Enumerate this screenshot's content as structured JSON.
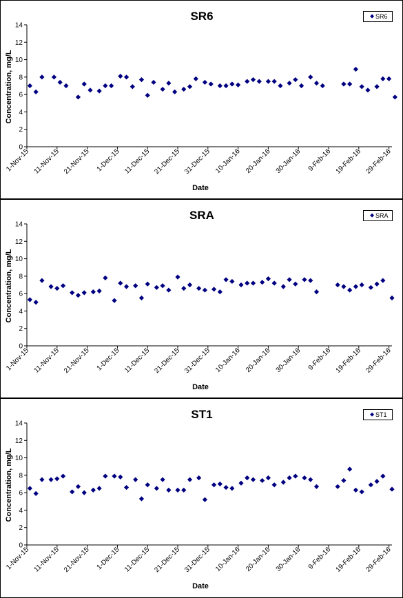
{
  "chart_data": [
    {
      "type": "scatter",
      "title": "SR6",
      "xlabel": "Date",
      "ylabel": "Concentration, mg/L",
      "ylim": [
        0,
        14
      ],
      "yticks": [
        "0",
        "2",
        "4",
        "6",
        "8",
        "10",
        "12",
        "14"
      ],
      "xlim": [
        "2015-11-01",
        "2016-03-01"
      ],
      "xticks": [
        "1-Nov-15",
        "11-Nov-15",
        "21-Nov-15",
        "1-Dec-15",
        "11-Dec-15",
        "21-Dec-15",
        "31-Dec-15",
        "10-Jan-16",
        "20-Jan-16",
        "30-Jan-16",
        "9-Feb-16",
        "19-Feb-16",
        "29-Feb-16"
      ],
      "legend": "top-right",
      "color": "#000080",
      "series": [
        {
          "name": "SR6",
          "points": [
            {
              "x": "2015-11-02",
              "y": 7.0
            },
            {
              "x": "2015-11-04",
              "y": 6.3
            },
            {
              "x": "2015-11-06",
              "y": 8.0
            },
            {
              "x": "2015-11-10",
              "y": 8.0
            },
            {
              "x": "2015-11-12",
              "y": 7.4
            },
            {
              "x": "2015-11-14",
              "y": 7.0
            },
            {
              "x": "2015-11-18",
              "y": 5.7
            },
            {
              "x": "2015-11-20",
              "y": 7.2
            },
            {
              "x": "2015-11-22",
              "y": 6.5
            },
            {
              "x": "2015-11-25",
              "y": 6.4
            },
            {
              "x": "2015-11-27",
              "y": 7.0
            },
            {
              "x": "2015-11-29",
              "y": 7.0
            },
            {
              "x": "2015-12-02",
              "y": 8.1
            },
            {
              "x": "2015-12-04",
              "y": 8.0
            },
            {
              "x": "2015-12-06",
              "y": 6.9
            },
            {
              "x": "2015-12-09",
              "y": 7.7
            },
            {
              "x": "2015-12-11",
              "y": 5.9
            },
            {
              "x": "2015-12-13",
              "y": 7.4
            },
            {
              "x": "2015-12-16",
              "y": 6.6
            },
            {
              "x": "2015-12-18",
              "y": 7.3
            },
            {
              "x": "2015-12-20",
              "y": 6.3
            },
            {
              "x": "2015-12-23",
              "y": 6.6
            },
            {
              "x": "2015-12-25",
              "y": 6.9
            },
            {
              "x": "2015-12-27",
              "y": 7.8
            },
            {
              "x": "2015-12-30",
              "y": 7.4
            },
            {
              "x": "2016-01-01",
              "y": 7.2
            },
            {
              "x": "2016-01-04",
              "y": 7.0
            },
            {
              "x": "2016-01-06",
              "y": 7.0
            },
            {
              "x": "2016-01-08",
              "y": 7.2
            },
            {
              "x": "2016-01-10",
              "y": 7.1
            },
            {
              "x": "2016-01-13",
              "y": 7.5
            },
            {
              "x": "2016-01-15",
              "y": 7.7
            },
            {
              "x": "2016-01-17",
              "y": 7.5
            },
            {
              "x": "2016-01-20",
              "y": 7.5
            },
            {
              "x": "2016-01-22",
              "y": 7.5
            },
            {
              "x": "2016-01-24",
              "y": 7.0
            },
            {
              "x": "2016-01-27",
              "y": 7.3
            },
            {
              "x": "2016-01-29",
              "y": 7.7
            },
            {
              "x": "2016-01-31",
              "y": 7.0
            },
            {
              "x": "2016-02-03",
              "y": 8.0
            },
            {
              "x": "2016-02-05",
              "y": 7.3
            },
            {
              "x": "2016-02-07",
              "y": 7.0
            },
            {
              "x": "2016-02-14",
              "y": 7.2
            },
            {
              "x": "2016-02-16",
              "y": 7.2
            },
            {
              "x": "2016-02-18",
              "y": 8.9
            },
            {
              "x": "2016-02-20",
              "y": 6.9
            },
            {
              "x": "2016-02-22",
              "y": 6.5
            },
            {
              "x": "2016-02-25",
              "y": 6.9
            },
            {
              "x": "2016-02-27",
              "y": 7.8
            },
            {
              "x": "2016-02-29",
              "y": 7.8
            },
            {
              "x": "2016-03-02",
              "y": 5.7
            }
          ]
        }
      ]
    },
    {
      "type": "scatter",
      "title": "SRA",
      "xlabel": "Date",
      "ylabel": "Concentration, mg/L",
      "ylim": [
        0,
        14
      ],
      "yticks": [
        "0",
        "2",
        "4",
        "6",
        "8",
        "10",
        "12",
        "14"
      ],
      "xlim": [
        "2015-11-01",
        "2016-03-01"
      ],
      "xticks": [
        "1-Nov-15",
        "11-Nov-15",
        "21-Nov-15",
        "1-Dec-15",
        "11-Dec-15",
        "21-Dec-15",
        "31-Dec-15",
        "10-Jan-16",
        "20-Jan-16",
        "30-Jan-16",
        "9-Feb-16",
        "19-Feb-16",
        "29-Feb-16"
      ],
      "legend": "top-right",
      "color": "#000080",
      "series": [
        {
          "name": "SRA",
          "points": [
            {
              "x": "2015-11-02",
              "y": 5.3
            },
            {
              "x": "2015-11-04",
              "y": 5.0
            },
            {
              "x": "2015-11-06",
              "y": 7.5
            },
            {
              "x": "2015-11-09",
              "y": 6.8
            },
            {
              "x": "2015-11-11",
              "y": 6.6
            },
            {
              "x": "2015-11-13",
              "y": 6.9
            },
            {
              "x": "2015-11-16",
              "y": 6.1
            },
            {
              "x": "2015-11-18",
              "y": 5.8
            },
            {
              "x": "2015-11-20",
              "y": 6.1
            },
            {
              "x": "2015-11-23",
              "y": 6.2
            },
            {
              "x": "2015-11-25",
              "y": 6.3
            },
            {
              "x": "2015-11-27",
              "y": 7.8
            },
            {
              "x": "2015-11-30",
              "y": 5.2
            },
            {
              "x": "2015-12-02",
              "y": 7.2
            },
            {
              "x": "2015-12-04",
              "y": 6.8
            },
            {
              "x": "2015-12-07",
              "y": 6.9
            },
            {
              "x": "2015-12-09",
              "y": 5.5
            },
            {
              "x": "2015-12-11",
              "y": 7.1
            },
            {
              "x": "2015-12-14",
              "y": 6.7
            },
            {
              "x": "2015-12-16",
              "y": 6.9
            },
            {
              "x": "2015-12-18",
              "y": 6.4
            },
            {
              "x": "2015-12-21",
              "y": 7.9
            },
            {
              "x": "2015-12-23",
              "y": 6.6
            },
            {
              "x": "2015-12-25",
              "y": 7.0
            },
            {
              "x": "2015-12-28",
              "y": 6.6
            },
            {
              "x": "2015-12-30",
              "y": 6.4
            },
            {
              "x": "2016-01-02",
              "y": 6.5
            },
            {
              "x": "2016-01-04",
              "y": 6.2
            },
            {
              "x": "2016-01-06",
              "y": 7.6
            },
            {
              "x": "2016-01-08",
              "y": 7.4
            },
            {
              "x": "2016-01-11",
              "y": 7.0
            },
            {
              "x": "2016-01-13",
              "y": 7.2
            },
            {
              "x": "2016-01-15",
              "y": 7.2
            },
            {
              "x": "2016-01-18",
              "y": 7.3
            },
            {
              "x": "2016-01-20",
              "y": 7.7
            },
            {
              "x": "2016-01-22",
              "y": 7.2
            },
            {
              "x": "2016-01-25",
              "y": 6.8
            },
            {
              "x": "2016-01-27",
              "y": 7.6
            },
            {
              "x": "2016-01-29",
              "y": 7.1
            },
            {
              "x": "2016-02-01",
              "y": 7.6
            },
            {
              "x": "2016-02-03",
              "y": 7.5
            },
            {
              "x": "2016-02-05",
              "y": 6.2
            },
            {
              "x": "2016-02-12",
              "y": 7.0
            },
            {
              "x": "2016-02-14",
              "y": 6.8
            },
            {
              "x": "2016-02-16",
              "y": 6.4
            },
            {
              "x": "2016-02-18",
              "y": 6.8
            },
            {
              "x": "2016-02-20",
              "y": 7.0
            },
            {
              "x": "2016-02-23",
              "y": 6.7
            },
            {
              "x": "2016-02-25",
              "y": 7.1
            },
            {
              "x": "2016-02-27",
              "y": 7.5
            },
            {
              "x": "2016-03-01",
              "y": 5.5
            }
          ]
        }
      ]
    },
    {
      "type": "scatter",
      "title": "ST1",
      "xlabel": "Date",
      "ylabel": "Concentration, mg/L",
      "ylim": [
        0,
        14
      ],
      "yticks": [
        "0",
        "2",
        "4",
        "6",
        "8",
        "10",
        "12",
        "14"
      ],
      "xlim": [
        "2015-11-01",
        "2016-03-01"
      ],
      "xticks": [
        "1-Nov-15",
        "11-Nov-15",
        "21-Nov-15",
        "1-Dec-15",
        "11-Dec-15",
        "21-Dec-15",
        "31-Dec-15",
        "10-Jan-16",
        "20-Jan-16",
        "30-Jan-16",
        "9-Feb-16",
        "19-Feb-16",
        "29-Feb-16"
      ],
      "legend": "top-right",
      "color": "#000080",
      "series": [
        {
          "name": "ST1",
          "points": [
            {
              "x": "2015-11-02",
              "y": 6.5
            },
            {
              "x": "2015-11-04",
              "y": 5.9
            },
            {
              "x": "2015-11-06",
              "y": 7.5
            },
            {
              "x": "2015-11-09",
              "y": 7.5
            },
            {
              "x": "2015-11-11",
              "y": 7.6
            },
            {
              "x": "2015-11-13",
              "y": 7.9
            },
            {
              "x": "2015-11-16",
              "y": 6.1
            },
            {
              "x": "2015-11-18",
              "y": 6.7
            },
            {
              "x": "2015-11-20",
              "y": 6.0
            },
            {
              "x": "2015-11-23",
              "y": 6.3
            },
            {
              "x": "2015-11-25",
              "y": 6.5
            },
            {
              "x": "2015-11-27",
              "y": 7.9
            },
            {
              "x": "2015-11-30",
              "y": 7.9
            },
            {
              "x": "2015-12-02",
              "y": 7.8
            },
            {
              "x": "2015-12-04",
              "y": 6.6
            },
            {
              "x": "2015-12-07",
              "y": 7.5
            },
            {
              "x": "2015-12-09",
              "y": 5.3
            },
            {
              "x": "2015-12-11",
              "y": 6.9
            },
            {
              "x": "2015-12-14",
              "y": 6.5
            },
            {
              "x": "2015-12-16",
              "y": 7.5
            },
            {
              "x": "2015-12-18",
              "y": 6.3
            },
            {
              "x": "2015-12-21",
              "y": 6.3
            },
            {
              "x": "2015-12-23",
              "y": 6.3
            },
            {
              "x": "2015-12-25",
              "y": 7.5
            },
            {
              "x": "2015-12-28",
              "y": 7.7
            },
            {
              "x": "2015-12-30",
              "y": 5.2
            },
            {
              "x": "2016-01-02",
              "y": 6.9
            },
            {
              "x": "2016-01-04",
              "y": 7.0
            },
            {
              "x": "2016-01-06",
              "y": 6.6
            },
            {
              "x": "2016-01-08",
              "y": 6.5
            },
            {
              "x": "2016-01-11",
              "y": 7.1
            },
            {
              "x": "2016-01-13",
              "y": 7.7
            },
            {
              "x": "2016-01-15",
              "y": 7.5
            },
            {
              "x": "2016-01-18",
              "y": 7.4
            },
            {
              "x": "2016-01-20",
              "y": 7.7
            },
            {
              "x": "2016-01-22",
              "y": 6.9
            },
            {
              "x": "2016-01-25",
              "y": 7.2
            },
            {
              "x": "2016-01-27",
              "y": 7.7
            },
            {
              "x": "2016-01-29",
              "y": 7.9
            },
            {
              "x": "2016-02-01",
              "y": 7.7
            },
            {
              "x": "2016-02-03",
              "y": 7.5
            },
            {
              "x": "2016-02-05",
              "y": 6.7
            },
            {
              "x": "2016-02-12",
              "y": 6.7
            },
            {
              "x": "2016-02-14",
              "y": 7.4
            },
            {
              "x": "2016-02-16",
              "y": 8.7
            },
            {
              "x": "2016-02-18",
              "y": 6.3
            },
            {
              "x": "2016-02-20",
              "y": 6.1
            },
            {
              "x": "2016-02-23",
              "y": 6.9
            },
            {
              "x": "2016-02-25",
              "y": 7.3
            },
            {
              "x": "2016-02-27",
              "y": 7.9
            },
            {
              "x": "2016-03-01",
              "y": 6.4
            }
          ]
        }
      ]
    }
  ]
}
